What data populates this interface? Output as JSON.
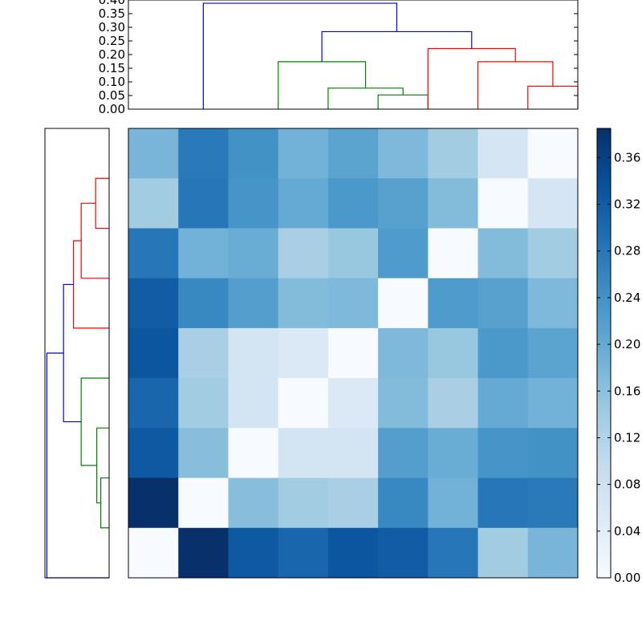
{
  "chart_data": {
    "type": "heatmap",
    "title": "",
    "colormap": "Blues",
    "colors": {
      "cluster_red": "#ff0000",
      "cluster_green": "#008000",
      "above_threshold": "#0000ff",
      "frame": "#000000"
    },
    "matrix": [
      [
        0.18,
        0.275,
        0.24,
        0.185,
        0.21,
        0.175,
        0.14,
        0.065,
        0.0
      ],
      [
        0.14,
        0.28,
        0.235,
        0.2,
        0.23,
        0.215,
        0.17,
        0.0,
        0.065
      ],
      [
        0.28,
        0.185,
        0.195,
        0.13,
        0.15,
        0.225,
        0.0,
        0.17,
        0.14
      ],
      [
        0.32,
        0.255,
        0.22,
        0.17,
        0.175,
        0.0,
        0.225,
        0.215,
        0.175
      ],
      [
        0.33,
        0.13,
        0.07,
        0.055,
        0.0,
        0.175,
        0.15,
        0.23,
        0.21
      ],
      [
        0.305,
        0.14,
        0.07,
        0.0,
        0.055,
        0.17,
        0.13,
        0.2,
        0.185
      ],
      [
        0.325,
        0.165,
        0.0,
        0.07,
        0.07,
        0.22,
        0.195,
        0.235,
        0.24
      ],
      [
        0.385,
        0.0,
        0.165,
        0.14,
        0.13,
        0.255,
        0.185,
        0.28,
        0.275
      ],
      [
        0.0,
        0.385,
        0.325,
        0.305,
        0.33,
        0.32,
        0.28,
        0.14,
        0.18
      ]
    ],
    "colorbar": {
      "range": [
        0.0,
        0.385
      ],
      "ticks": [
        0.0,
        0.04,
        0.08,
        0.12,
        0.16,
        0.2,
        0.24,
        0.28,
        0.32,
        0.36
      ],
      "tick_labels": [
        "0.00",
        "0.04",
        "0.08",
        "0.12",
        "0.16",
        "0.20",
        "0.24",
        "0.28",
        "0.32",
        "0.36"
      ]
    },
    "top_dendrogram": {
      "ylim": [
        0.0,
        0.4
      ],
      "ticks": [
        0.0,
        0.05,
        0.1,
        0.15,
        0.2,
        0.25,
        0.3,
        0.35,
        0.4
      ],
      "tick_labels": [
        "0.00",
        "0.05",
        "0.10",
        "0.15",
        "0.20",
        "0.25",
        "0.30",
        "0.35",
        "0.40"
      ],
      "links": [
        {
          "x": [
            5,
            5,
            6,
            6
          ],
          "y": [
            0.0,
            0.052,
            0.052,
            0.0
          ],
          "color": "green"
        },
        {
          "x": [
            4,
            4,
            5.5,
            5.5
          ],
          "y": [
            0.0,
            0.077,
            0.077,
            0.052
          ],
          "color": "green"
        },
        {
          "x": [
            3,
            3,
            4.75,
            4.75
          ],
          "y": [
            0.0,
            0.174,
            0.174,
            0.077
          ],
          "color": "green"
        },
        {
          "x": [
            8,
            8,
            9,
            9
          ],
          "y": [
            0.0,
            0.084,
            0.084,
            0.0
          ],
          "color": "red"
        },
        {
          "x": [
            7,
            7,
            8.5,
            8.5
          ],
          "y": [
            0.0,
            0.174,
            0.174,
            0.084
          ],
          "color": "red"
        },
        {
          "x": [
            6,
            6,
            7.75,
            7.75
          ],
          "y": [
            0.0,
            0.222,
            0.222,
            0.174
          ],
          "color": "red"
        },
        {
          "x": [
            3.875,
            3.875,
            6.875,
            6.875
          ],
          "y": [
            0.174,
            0.284,
            0.284,
            0.222
          ],
          "color": "blue"
        },
        {
          "x": [
            1.5,
            1.5,
            5.375,
            5.375
          ],
          "y": [
            0.0,
            0.388,
            0.388,
            0.284
          ],
          "color": "blue"
        }
      ]
    },
    "left_dendrogram": {
      "links": [
        {
          "y": [
            2,
            2,
            1,
            1
          ],
          "x": [
            0.0,
            0.052,
            0.052,
            0.0
          ],
          "color": "green"
        },
        {
          "y": [
            3,
            3,
            1.5,
            1.5
          ],
          "x": [
            0.0,
            0.077,
            0.077,
            0.052
          ],
          "color": "green"
        },
        {
          "y": [
            4,
            4,
            2.25,
            2.25
          ],
          "x": [
            0.0,
            0.174,
            0.174,
            0.077
          ],
          "color": "green"
        },
        {
          "y": [
            7,
            7,
            8,
            8
          ],
          "x": [
            0.0,
            0.084,
            0.084,
            0.0
          ],
          "color": "red"
        },
        {
          "y": [
            6,
            6,
            7.5,
            7.5
          ],
          "x": [
            0.0,
            0.174,
            0.174,
            0.084
          ],
          "color": "red"
        },
        {
          "y": [
            5,
            5,
            6.75,
            6.75
          ],
          "x": [
            0.0,
            0.222,
            0.222,
            0.174
          ],
          "color": "red"
        },
        {
          "y": [
            3.125,
            3.125,
            5.875,
            5.875
          ],
          "x": [
            0.174,
            0.284,
            0.284,
            0.222
          ],
          "color": "blue"
        },
        {
          "y": [
            0,
            0,
            4.5,
            4.5
          ],
          "x": [
            0.0,
            0.388,
            0.388,
            0.284
          ],
          "color": "blue"
        }
      ]
    },
    "grid": false,
    "legend": "none"
  }
}
